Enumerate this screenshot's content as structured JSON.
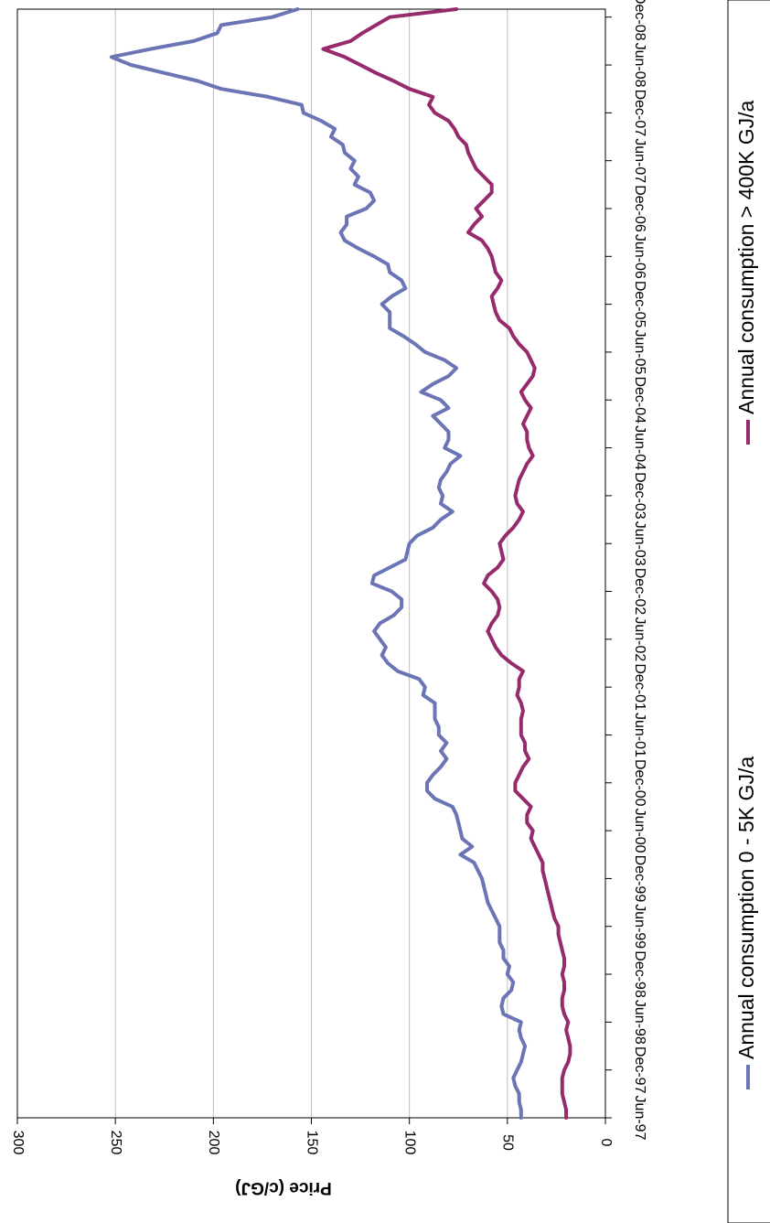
{
  "chart_data": {
    "type": "line",
    "orientation": "rotated-90-clockwise",
    "title": "",
    "xlabel": "",
    "ylabel": "Price  (c/GJ)",
    "ylim": [
      0,
      300
    ],
    "yticks": [
      "0",
      "50",
      "100",
      "150",
      "200",
      "250",
      "300"
    ],
    "xlim": [
      "Jun-97",
      "Dec-08"
    ],
    "xticks": [
      "Jun-97",
      "Dec-97",
      "Jun-98",
      "Dec-98",
      "Jun-99",
      "Dec-99",
      "Jun-00",
      "Dec-00",
      "Jun-01",
      "Dec-01",
      "Jun-02",
      "Dec-02",
      "Jun-03",
      "Dec-03",
      "Jun-04",
      "Dec-04",
      "Jun-05",
      "Dec-05",
      "Jun-06",
      "Dec-06",
      "Jun-07",
      "Dec-07",
      "Jun-08",
      "Dec-08"
    ],
    "grid": true,
    "legend_position": "bottom",
    "series": [
      {
        "name": "Annual consumption 0 - 5K GJ/a",
        "color": "#6b74b5",
        "values": [
          [
            "1997-06",
            43
          ],
          [
            "1997-07",
            43
          ],
          [
            "1997-08",
            44
          ],
          [
            "1997-09",
            44
          ],
          [
            "1997-10",
            46
          ],
          [
            "1997-11",
            47
          ],
          [
            "1997-12",
            45
          ],
          [
            "1998-01",
            43
          ],
          [
            "1998-02",
            42
          ],
          [
            "1998-03",
            41
          ],
          [
            "1998-04",
            43
          ],
          [
            "1998-05",
            44
          ],
          [
            "1998-06",
            43
          ],
          [
            "1998-07",
            52
          ],
          [
            "1998-08",
            53
          ],
          [
            "1998-09",
            52
          ],
          [
            "1998-10",
            48
          ],
          [
            "1998-11",
            47
          ],
          [
            "1998-12",
            50
          ],
          [
            "1999-01",
            49
          ],
          [
            "1999-02",
            52
          ],
          [
            "1999-03",
            52
          ],
          [
            "1999-04",
            54
          ],
          [
            "1999-05",
            54
          ],
          [
            "1999-06",
            54
          ],
          [
            "1999-07",
            56
          ],
          [
            "1999-08",
            58
          ],
          [
            "1999-09",
            60
          ],
          [
            "1999-10",
            61
          ],
          [
            "1999-11",
            62
          ],
          [
            "1999-12",
            63
          ],
          [
            "2000-01",
            65
          ],
          [
            "2000-02",
            67
          ],
          [
            "2000-03",
            74
          ],
          [
            "2000-04",
            68
          ],
          [
            "2000-05",
            73
          ],
          [
            "2000-06",
            74
          ],
          [
            "2000-07",
            75
          ],
          [
            "2000-08",
            76
          ],
          [
            "2000-09",
            78
          ],
          [
            "2000-10",
            87
          ],
          [
            "2000-11",
            91
          ],
          [
            "2000-12",
            91
          ],
          [
            "2001-01",
            88
          ],
          [
            "2001-02",
            84
          ],
          [
            "2001-03",
            81
          ],
          [
            "2001-04",
            84
          ],
          [
            "2001-05",
            81
          ],
          [
            "2001-06",
            85
          ],
          [
            "2001-07",
            85
          ],
          [
            "2001-08",
            87
          ],
          [
            "2001-09",
            87
          ],
          [
            "2001-10",
            87
          ],
          [
            "2001-11",
            93
          ],
          [
            "2001-12",
            92
          ],
          [
            "2002-01",
            95
          ],
          [
            "2002-02",
            106
          ],
          [
            "2002-03",
            111
          ],
          [
            "2002-04",
            114
          ],
          [
            "2002-05",
            112
          ],
          [
            "2002-06",
            115
          ],
          [
            "2002-07",
            118
          ],
          [
            "2002-08",
            115
          ],
          [
            "2002-09",
            108
          ],
          [
            "2002-10",
            104
          ],
          [
            "2002-11",
            104
          ],
          [
            "2002-12",
            109
          ],
          [
            "2003-01",
            119
          ],
          [
            "2003-02",
            118
          ],
          [
            "2003-03",
            110
          ],
          [
            "2003-04",
            102
          ],
          [
            "2003-05",
            101
          ],
          [
            "2003-06",
            100
          ],
          [
            "2003-07",
            96
          ],
          [
            "2003-08",
            88
          ],
          [
            "2003-09",
            84
          ],
          [
            "2003-10",
            78
          ],
          [
            "2003-11",
            84
          ],
          [
            "2003-12",
            83
          ],
          [
            "2004-01",
            85
          ],
          [
            "2004-02",
            84
          ],
          [
            "2004-03",
            81
          ],
          [
            "2004-04",
            79
          ],
          [
            "2004-05",
            74
          ],
          [
            "2004-06",
            82
          ],
          [
            "2004-07",
            80
          ],
          [
            "2004-08",
            80
          ],
          [
            "2004-09",
            84
          ],
          [
            "2004-10",
            88
          ],
          [
            "2004-11",
            80
          ],
          [
            "2004-12",
            84
          ],
          [
            "2005-01",
            94
          ],
          [
            "2005-02",
            88
          ],
          [
            "2005-03",
            80
          ],
          [
            "2005-04",
            76
          ],
          [
            "2005-05",
            82
          ],
          [
            "2005-06",
            92
          ],
          [
            "2005-07",
            97
          ],
          [
            "2005-08",
            103
          ],
          [
            "2005-09",
            110
          ],
          [
            "2005-10",
            110
          ],
          [
            "2005-11",
            110
          ],
          [
            "2005-12",
            114
          ],
          [
            "2006-01",
            109
          ],
          [
            "2006-02",
            102
          ],
          [
            "2006-03",
            104
          ],
          [
            "2006-04",
            110
          ],
          [
            "2006-05",
            111
          ],
          [
            "2006-06",
            118
          ],
          [
            "2006-07",
            126
          ],
          [
            "2006-08",
            133
          ],
          [
            "2006-09",
            135
          ],
          [
            "2006-10",
            132
          ],
          [
            "2006-11",
            132
          ],
          [
            "2006-12",
            122
          ],
          [
            "2007-01",
            118
          ],
          [
            "2007-02",
            120
          ],
          [
            "2007-03",
            128
          ],
          [
            "2007-04",
            126
          ],
          [
            "2007-05",
            130
          ],
          [
            "2007-06",
            128
          ],
          [
            "2007-07",
            133
          ],
          [
            "2007-08",
            134
          ],
          [
            "2007-09",
            140
          ],
          [
            "2007-10",
            138
          ],
          [
            "2007-11",
            145
          ],
          [
            "2007-12",
            154
          ],
          [
            "2008-01",
            155
          ],
          [
            "2008-02",
            172
          ],
          [
            "2008-03",
            196
          ],
          [
            "2008-04",
            208
          ],
          [
            "2008-05",
            225
          ],
          [
            "2008-06",
            242
          ],
          [
            "2008-07",
            252
          ],
          [
            "2008-08",
            232
          ],
          [
            "2008-09",
            210
          ],
          [
            "2008-10",
            198
          ],
          [
            "2008-11",
            196
          ],
          [
            "2008-12",
            170
          ],
          [
            "2009-01",
            157
          ]
        ]
      },
      {
        "name": "Annual consumption > 400K GJ/a",
        "color": "#962b6b",
        "values": [
          [
            "1997-06",
            20
          ],
          [
            "1997-07",
            20
          ],
          [
            "1997-08",
            21
          ],
          [
            "1997-09",
            22
          ],
          [
            "1997-10",
            22
          ],
          [
            "1997-11",
            22
          ],
          [
            "1997-12",
            21
          ],
          [
            "1998-01",
            19
          ],
          [
            "1998-02",
            18
          ],
          [
            "1998-03",
            18
          ],
          [
            "1998-04",
            19
          ],
          [
            "1998-05",
            20
          ],
          [
            "1998-06",
            19
          ],
          [
            "1998-07",
            21
          ],
          [
            "1998-08",
            22
          ],
          [
            "1998-09",
            22
          ],
          [
            "1998-10",
            21
          ],
          [
            "1998-11",
            21
          ],
          [
            "1998-12",
            22
          ],
          [
            "1999-01",
            21
          ],
          [
            "1999-02",
            21
          ],
          [
            "1999-03",
            22
          ],
          [
            "1999-04",
            23
          ],
          [
            "1999-05",
            24
          ],
          [
            "1999-06",
            24
          ],
          [
            "1999-07",
            26
          ],
          [
            "1999-08",
            27
          ],
          [
            "1999-09",
            28
          ],
          [
            "1999-10",
            29
          ],
          [
            "1999-11",
            30
          ],
          [
            "1999-12",
            31
          ],
          [
            "2000-01",
            32
          ],
          [
            "2000-02",
            32
          ],
          [
            "2000-03",
            34
          ],
          [
            "2000-04",
            36
          ],
          [
            "2000-05",
            38
          ],
          [
            "2000-06",
            37
          ],
          [
            "2000-07",
            40
          ],
          [
            "2000-08",
            40
          ],
          [
            "2000-09",
            38
          ],
          [
            "2000-10",
            42
          ],
          [
            "2000-11",
            46
          ],
          [
            "2000-12",
            46
          ],
          [
            "2001-01",
            44
          ],
          [
            "2001-02",
            42
          ],
          [
            "2001-03",
            39
          ],
          [
            "2001-04",
            41
          ],
          [
            "2001-05",
            41
          ],
          [
            "2001-06",
            43
          ],
          [
            "2001-07",
            43
          ],
          [
            "2001-08",
            43
          ],
          [
            "2001-09",
            42
          ],
          [
            "2001-10",
            43
          ],
          [
            "2001-11",
            45
          ],
          [
            "2001-12",
            44
          ],
          [
            "2002-01",
            44
          ],
          [
            "2002-02",
            42
          ],
          [
            "2002-03",
            48
          ],
          [
            "2002-04",
            53
          ],
          [
            "2002-05",
            56
          ],
          [
            "2002-06",
            58
          ],
          [
            "2002-07",
            60
          ],
          [
            "2002-08",
            58
          ],
          [
            "2002-09",
            55
          ],
          [
            "2002-10",
            54
          ],
          [
            "2002-11",
            55
          ],
          [
            "2002-12",
            58
          ],
          [
            "2003-01",
            62
          ],
          [
            "2003-02",
            60
          ],
          [
            "2003-03",
            55
          ],
          [
            "2003-04",
            52
          ],
          [
            "2003-05",
            53
          ],
          [
            "2003-06",
            54
          ],
          [
            "2003-07",
            51
          ],
          [
            "2003-08",
            47
          ],
          [
            "2003-09",
            44
          ],
          [
            "2003-10",
            42
          ],
          [
            "2003-11",
            45
          ],
          [
            "2003-12",
            46
          ],
          [
            "2004-01",
            45
          ],
          [
            "2004-02",
            44
          ],
          [
            "2004-03",
            42
          ],
          [
            "2004-04",
            40
          ],
          [
            "2004-05",
            37
          ],
          [
            "2004-06",
            39
          ],
          [
            "2004-07",
            40
          ],
          [
            "2004-08",
            40
          ],
          [
            "2004-09",
            42
          ],
          [
            "2004-10",
            40
          ],
          [
            "2004-11",
            38
          ],
          [
            "2004-12",
            41
          ],
          [
            "2005-01",
            43
          ],
          [
            "2005-02",
            40
          ],
          [
            "2005-03",
            37
          ],
          [
            "2005-04",
            36
          ],
          [
            "2005-05",
            38
          ],
          [
            "2005-06",
            40
          ],
          [
            "2005-07",
            44
          ],
          [
            "2005-08",
            47
          ],
          [
            "2005-09",
            49
          ],
          [
            "2005-10",
            54
          ],
          [
            "2005-11",
            56
          ],
          [
            "2005-12",
            57
          ],
          [
            "2006-01",
            58
          ],
          [
            "2006-02",
            55
          ],
          [
            "2006-03",
            53
          ],
          [
            "2006-04",
            56
          ],
          [
            "2006-05",
            57
          ],
          [
            "2006-06",
            58
          ],
          [
            "2006-07",
            60
          ],
          [
            "2006-08",
            63
          ],
          [
            "2006-09",
            70
          ],
          [
            "2006-10",
            67
          ],
          [
            "2006-11",
            63
          ],
          [
            "2006-12",
            66
          ],
          [
            "2007-01",
            62
          ],
          [
            "2007-02",
            58
          ],
          [
            "2007-03",
            58
          ],
          [
            "2007-04",
            62
          ],
          [
            "2007-05",
            66
          ],
          [
            "2007-06",
            68
          ],
          [
            "2007-07",
            70
          ],
          [
            "2007-08",
            71
          ],
          [
            "2007-09",
            75
          ],
          [
            "2007-10",
            77
          ],
          [
            "2007-11",
            80
          ],
          [
            "2007-12",
            87
          ],
          [
            "2008-01",
            90
          ],
          [
            "2008-02",
            88
          ],
          [
            "2008-03",
            100
          ],
          [
            "2008-04",
            108
          ],
          [
            "2008-05",
            117
          ],
          [
            "2008-06",
            125
          ],
          [
            "2008-07",
            133
          ],
          [
            "2008-08",
            144
          ],
          [
            "2008-09",
            130
          ],
          [
            "2008-10",
            124
          ],
          [
            "2008-11",
            117
          ],
          [
            "2008-12",
            110
          ],
          [
            "2009-01",
            76
          ]
        ]
      }
    ]
  }
}
